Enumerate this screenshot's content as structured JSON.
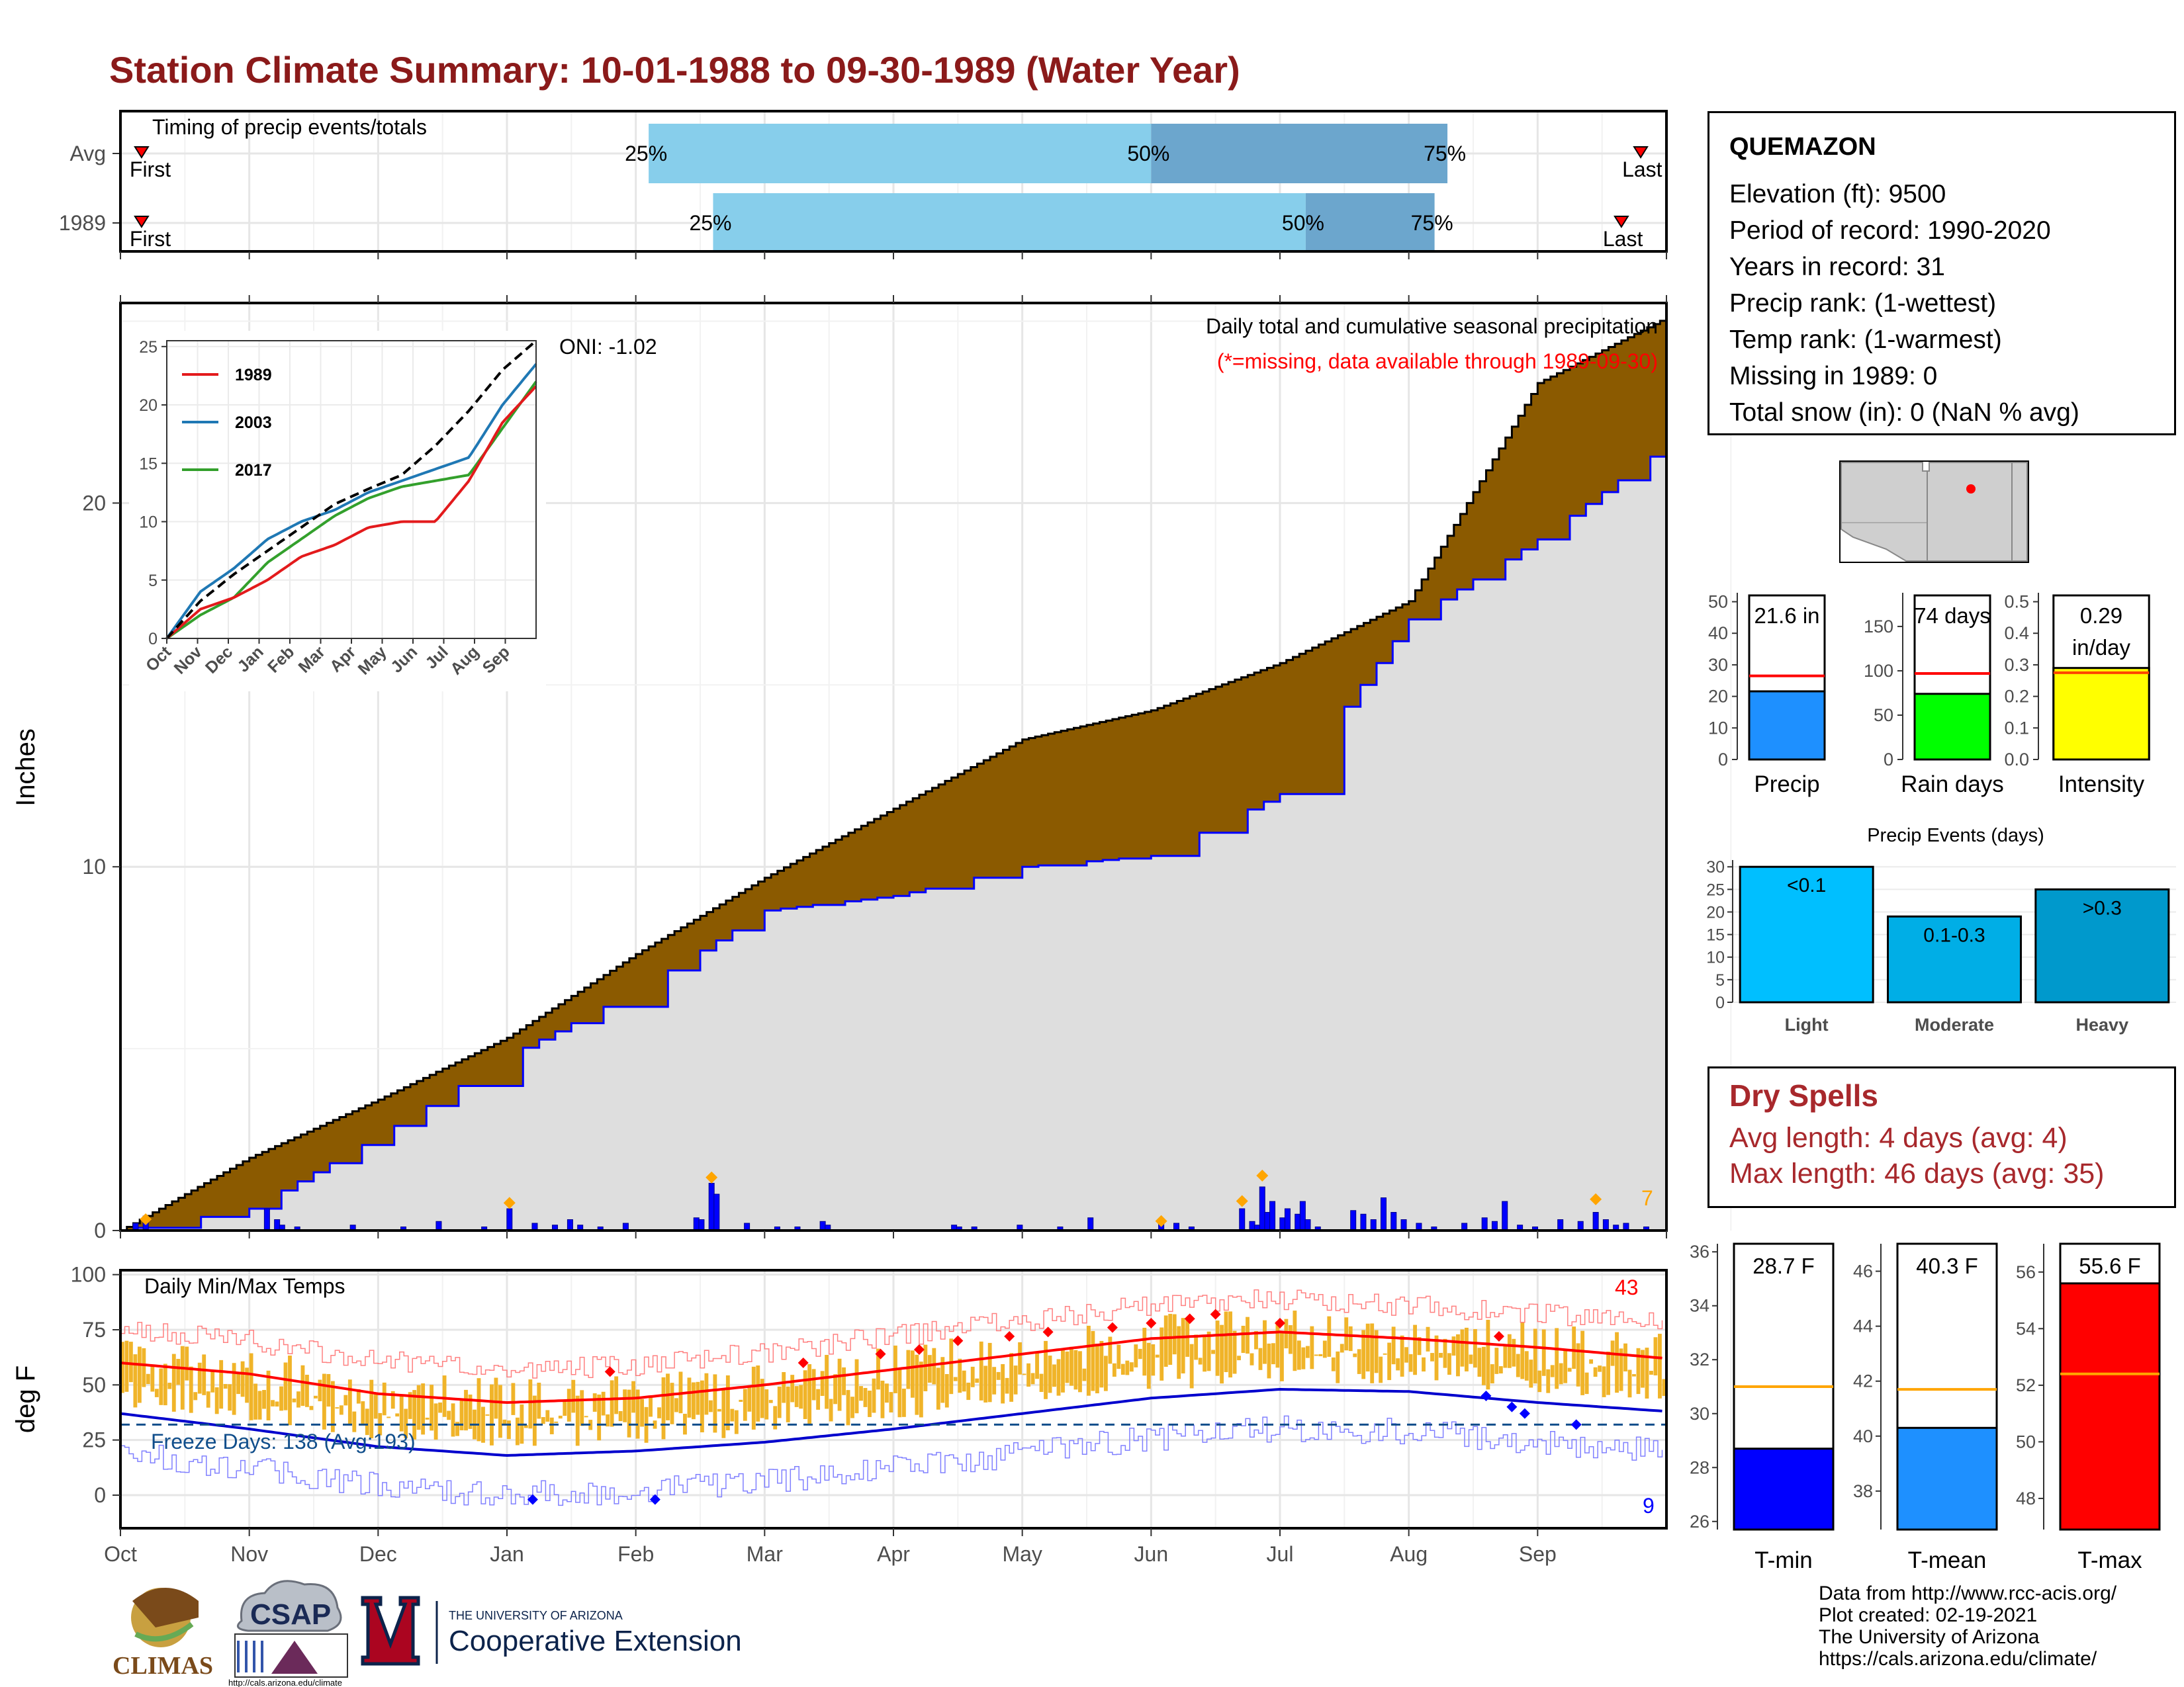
{
  "title": "Station Climate Summary: 10-01-1988 to 09-30-1989 (Water Year)",
  "timing": {
    "label": "Timing of precip events/totals",
    "rows": [
      {
        "name": "Avg",
        "first_label": "First",
        "last_label": "Last",
        "first": 0.02,
        "p25": 4.1,
        "p50": 8.0,
        "p75": 10.3,
        "last": 11.8
      },
      {
        "name": "1989",
        "first_label": "First",
        "last_label": "Last",
        "first": 0.02,
        "p25": 4.6,
        "p50": 9.2,
        "p75": 10.2,
        "last": 11.65
      }
    ],
    "p25_label": "25%",
    "p50_label": "50%",
    "p75_label": "75%"
  },
  "precip_panel": {
    "ylabel": "Inches",
    "yticks": [
      "0",
      "10",
      "20"
    ],
    "title": "Daily total and cumulative seasonal precipitation",
    "note": "(*=missing, data available through 1989-09-30)",
    "oni": "ONI: -1.02",
    "right_count": "7"
  },
  "months": [
    "Oct",
    "Nov",
    "Dec",
    "Jan",
    "Feb",
    "Mar",
    "Apr",
    "May",
    "Jun",
    "Jul",
    "Aug",
    "Sep"
  ],
  "inset": {
    "yticks": [
      "0",
      "5",
      "10",
      "15",
      "20",
      "25"
    ],
    "xticks": [
      "Oct",
      "Nov",
      "Dec",
      "Jan",
      "Feb",
      "Mar",
      "Apr",
      "May",
      "Jun",
      "Jul",
      "Aug",
      "Sep"
    ],
    "legend": [
      {
        "name": "1989",
        "color": "#e31a1c"
      },
      {
        "name": "2003",
        "color": "#1f78b4"
      },
      {
        "name": "2017",
        "color": "#33a02c"
      }
    ]
  },
  "temp_panel": {
    "ylabel": "deg F",
    "title": "Daily Min/Max Temps",
    "yticks": [
      "0",
      "25",
      "50",
      "75",
      "100"
    ],
    "freeze": "Freeze Days: 138 (Avg:193)",
    "count_hot": "43",
    "count_cold": "9"
  },
  "station": {
    "name": "QUEMAZON",
    "lines": [
      "Elevation (ft): 9500",
      "Period of record: 1990-2020",
      "Years in record: 31",
      "Precip rank:  (1-wettest)",
      "Temp rank:  (1-warmest)",
      "Missing in 1989: 0",
      "Total snow (in): 0 (NaN % avg)"
    ]
  },
  "summary_bars": [
    {
      "name": "Precip",
      "value": 21.6,
      "avg": 26.5,
      "label": "21.6 in",
      "label2": "",
      "ymax": 52,
      "ticks": [
        "0",
        "10",
        "20",
        "30",
        "40",
        "50"
      ],
      "tickvals": [
        0,
        10,
        20,
        30,
        40,
        50
      ],
      "color": "#1e90ff"
    },
    {
      "name": "Rain days",
      "value": 74,
      "avg": 97,
      "label": "74 days",
      "label2": "",
      "ymax": 185,
      "ticks": [
        "0",
        "50",
        "100",
        "150"
      ],
      "tickvals": [
        0,
        50,
        100,
        150
      ],
      "color": "#00ff00"
    },
    {
      "name": "Intensity",
      "value": 0.29,
      "avg": 0.275,
      "label": "0.29",
      "label2": "in/day",
      "ymax": 0.52,
      "ticks": [
        "0.0",
        "0.1",
        "0.2",
        "0.3",
        "0.4",
        "0.5"
      ],
      "tickvals": [
        0,
        0.1,
        0.2,
        0.3,
        0.4,
        0.5
      ],
      "color": "#ffff00"
    }
  ],
  "events": {
    "title": "Precip Events (days)",
    "categories": [
      "Light",
      "Moderate",
      "Heavy"
    ],
    "labels": [
      "<0.1",
      "0.1-0.3",
      ">0.3"
    ],
    "values": [
      30,
      19,
      25
    ],
    "colors": [
      "#00bfff",
      "#00aee6",
      "#0099cc"
    ],
    "ticks": [
      "0",
      "5",
      "10",
      "15",
      "20",
      "25",
      "30"
    ]
  },
  "dry_spells": {
    "title": "Dry Spells",
    "avg_length": "Avg length: 4 days (avg: 4)",
    "max_length": "Max length: 46 days (avg: 35)"
  },
  "temp_bars": [
    {
      "name": "T-min",
      "value": 28.7,
      "avg": 31.0,
      "label": "28.7 F",
      "ymin": 25.7,
      "ymax": 36.3,
      "ticks": [
        "26",
        "28",
        "30",
        "32",
        "34",
        "36"
      ],
      "tickvals": [
        26,
        28,
        30,
        32,
        34,
        36
      ],
      "color": "#0000ff"
    },
    {
      "name": "T-mean",
      "value": 40.3,
      "avg": 41.7,
      "label": "40.3 F",
      "ymin": 36.6,
      "ymax": 47.0,
      "ticks": [
        "38",
        "40",
        "42",
        "44",
        "46"
      ],
      "tickvals": [
        38,
        40,
        42,
        44,
        46
      ],
      "color": "#1e90ff"
    },
    {
      "name": "T-max",
      "value": 55.6,
      "avg": 52.4,
      "label": "55.6 F",
      "ymin": 46.9,
      "ymax": 57.0,
      "ticks": [
        "48",
        "50",
        "52",
        "54",
        "56"
      ],
      "tickvals": [
        48,
        50,
        52,
        54,
        56
      ],
      "color": "#ff0000"
    }
  ],
  "credits": [
    "Data from http://www.rcc-acis.org/",
    "Plot created: 02-19-2021",
    "The University of Arizona",
    "https://cals.arizona.edu/climate/"
  ],
  "logos": {
    "climas": "CLIMAS",
    "csap": "CSAP",
    "csap_url": "http://cals.arizona.edu/climate",
    "ua_small": "THE UNIVERSITY OF ARIZONA",
    "ua_big": "Cooperative Extension"
  },
  "chart_data": [
    {
      "type": "area",
      "title": "Daily total and cumulative seasonal precipitation",
      "ylabel": "Inches",
      "ylim": [
        0,
        25.5
      ],
      "x": [
        "Oct",
        "Nov",
        "Dec",
        "Jan",
        "Feb",
        "Mar",
        "Apr",
        "May",
        "Jun",
        "Jul",
        "Aug",
        "Sep",
        "end"
      ],
      "series": [
        {
          "name": "cumulative average",
          "values": [
            0,
            2.0,
            3.6,
            5.3,
            7.6,
            9.7,
            11.6,
            13.5,
            14.3,
            15.6,
            17.3,
            23.3,
            25.1
          ]
        },
        {
          "name": "cumulative 1989",
          "values": [
            0,
            0.6,
            2.6,
            4.8,
            6.6,
            8.8,
            9.2,
            10.0,
            10.3,
            12.0,
            16.8,
            19.0,
            21.6
          ]
        }
      ]
    },
    {
      "type": "line",
      "title": "Daily Min/Max Temps",
      "ylabel": "deg F",
      "ylim": [
        -15,
        102
      ],
      "x": [
        "Oct",
        "Nov",
        "Dec",
        "Jan",
        "Feb",
        "Mar",
        "Apr",
        "May",
        "Jun",
        "Jul",
        "Aug",
        "Sep",
        "end"
      ],
      "series": [
        {
          "name": "normal max",
          "values": [
            60,
            55,
            46,
            42,
            44,
            50,
            57,
            64,
            71,
            74,
            71,
            67,
            62
          ]
        },
        {
          "name": "normal min",
          "values": [
            37,
            30,
            22,
            18,
            20,
            24,
            30,
            37,
            44,
            48,
            47,
            42,
            38
          ]
        }
      ]
    }
  ]
}
